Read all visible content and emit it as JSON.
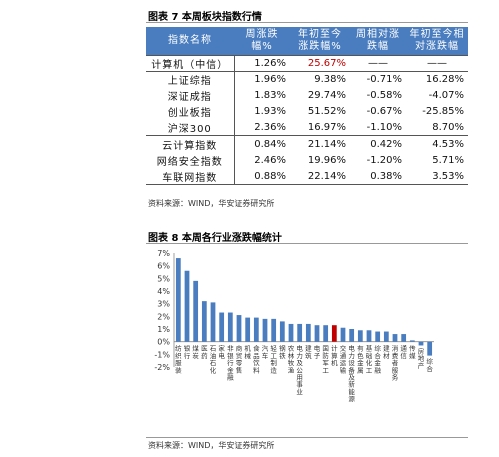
{
  "table_figure": {
    "title": "图表 7 本周板块指数行情",
    "headers": [
      "指数名称",
      "周涨跌幅%",
      "年初至今\n涨跌幅%",
      "周相对涨\n跌幅",
      "年初至今相\n对涨跌幅"
    ],
    "rows": [
      {
        "name": "计算机（中信）",
        "week": "1.26%",
        "ytd": "25.67%",
        "rel_week": "——",
        "rel_ytd": "——"
      },
      {
        "name": "上证综指",
        "week": "1.96%",
        "ytd": "9.38%",
        "rel_week": "-0.71%",
        "rel_ytd": "16.28%"
      },
      {
        "name": "深证成指",
        "week": "1.83%",
        "ytd": "29.74%",
        "rel_week": "-0.58%",
        "rel_ytd": "-4.07%"
      },
      {
        "name": "创业板指",
        "week": "1.93%",
        "ytd": "51.52%",
        "rel_week": "-0.67%",
        "rel_ytd": "-25.85%"
      },
      {
        "name": "沪深300",
        "week": "2.36%",
        "ytd": "16.97%",
        "rel_week": "-1.10%",
        "rel_ytd": "8.70%"
      },
      {
        "name": "云计算指数",
        "week": "0.84%",
        "ytd": "21.14%",
        "rel_week": "0.42%",
        "rel_ytd": "4.53%"
      },
      {
        "name": "网络安全指数",
        "week": "2.46%",
        "ytd": "19.96%",
        "rel_week": "-1.20%",
        "rel_ytd": "5.71%"
      },
      {
        "name": "车联网指数",
        "week": "0.88%",
        "ytd": "22.14%",
        "rel_week": "0.38%",
        "rel_ytd": "3.53%"
      }
    ],
    "source": "资料来源：WIND，华安证券研究所"
  },
  "chart_figure": {
    "title": "图表 8 本周各行业涨跌幅统计",
    "source": "资料来源：WIND，华安证券研究所"
  },
  "colors": {
    "header_bg": "#4a7dbf",
    "bar": "#4a7dbf",
    "highlight_bar": "#c00000",
    "highlight_text": "#c00000"
  },
  "chart_data": {
    "type": "bar",
    "title": "",
    "xlabel": "",
    "ylabel": "",
    "ylim": [
      -2,
      7
    ],
    "yticks": [
      "7%",
      "6%",
      "5%",
      "4%",
      "3%",
      "2%",
      "1%",
      "0%",
      "-1%",
      "-2%"
    ],
    "highlight_category": "计算机",
    "categories": [
      "纺织服装",
      "银行",
      "煤炭",
      "医药",
      "石油石化",
      "家电",
      "非银行金融",
      "商贸零售",
      "机械",
      "食品饮料",
      "汽车",
      "轻工制造",
      "钢铁",
      "农林牧渔",
      "电力及公用事业",
      "建筑",
      "电子",
      "国防军工",
      "计算机",
      "交通运输",
      "电力设备及新能源",
      "有色金属",
      "基础化工",
      "综合金融",
      "建材",
      "消费者服务",
      "通信",
      "传媒",
      "房地产",
      "综合"
    ],
    "values": [
      6.6,
      5.6,
      4.8,
      3.2,
      3.1,
      2.3,
      2.3,
      2.1,
      1.9,
      1.9,
      1.8,
      1.8,
      1.6,
      1.4,
      1.4,
      1.4,
      1.3,
      1.3,
      1.3,
      1.1,
      1.0,
      0.9,
      0.9,
      0.8,
      0.8,
      0.6,
      0.6,
      0.1,
      -0.3,
      -1.1
    ]
  }
}
